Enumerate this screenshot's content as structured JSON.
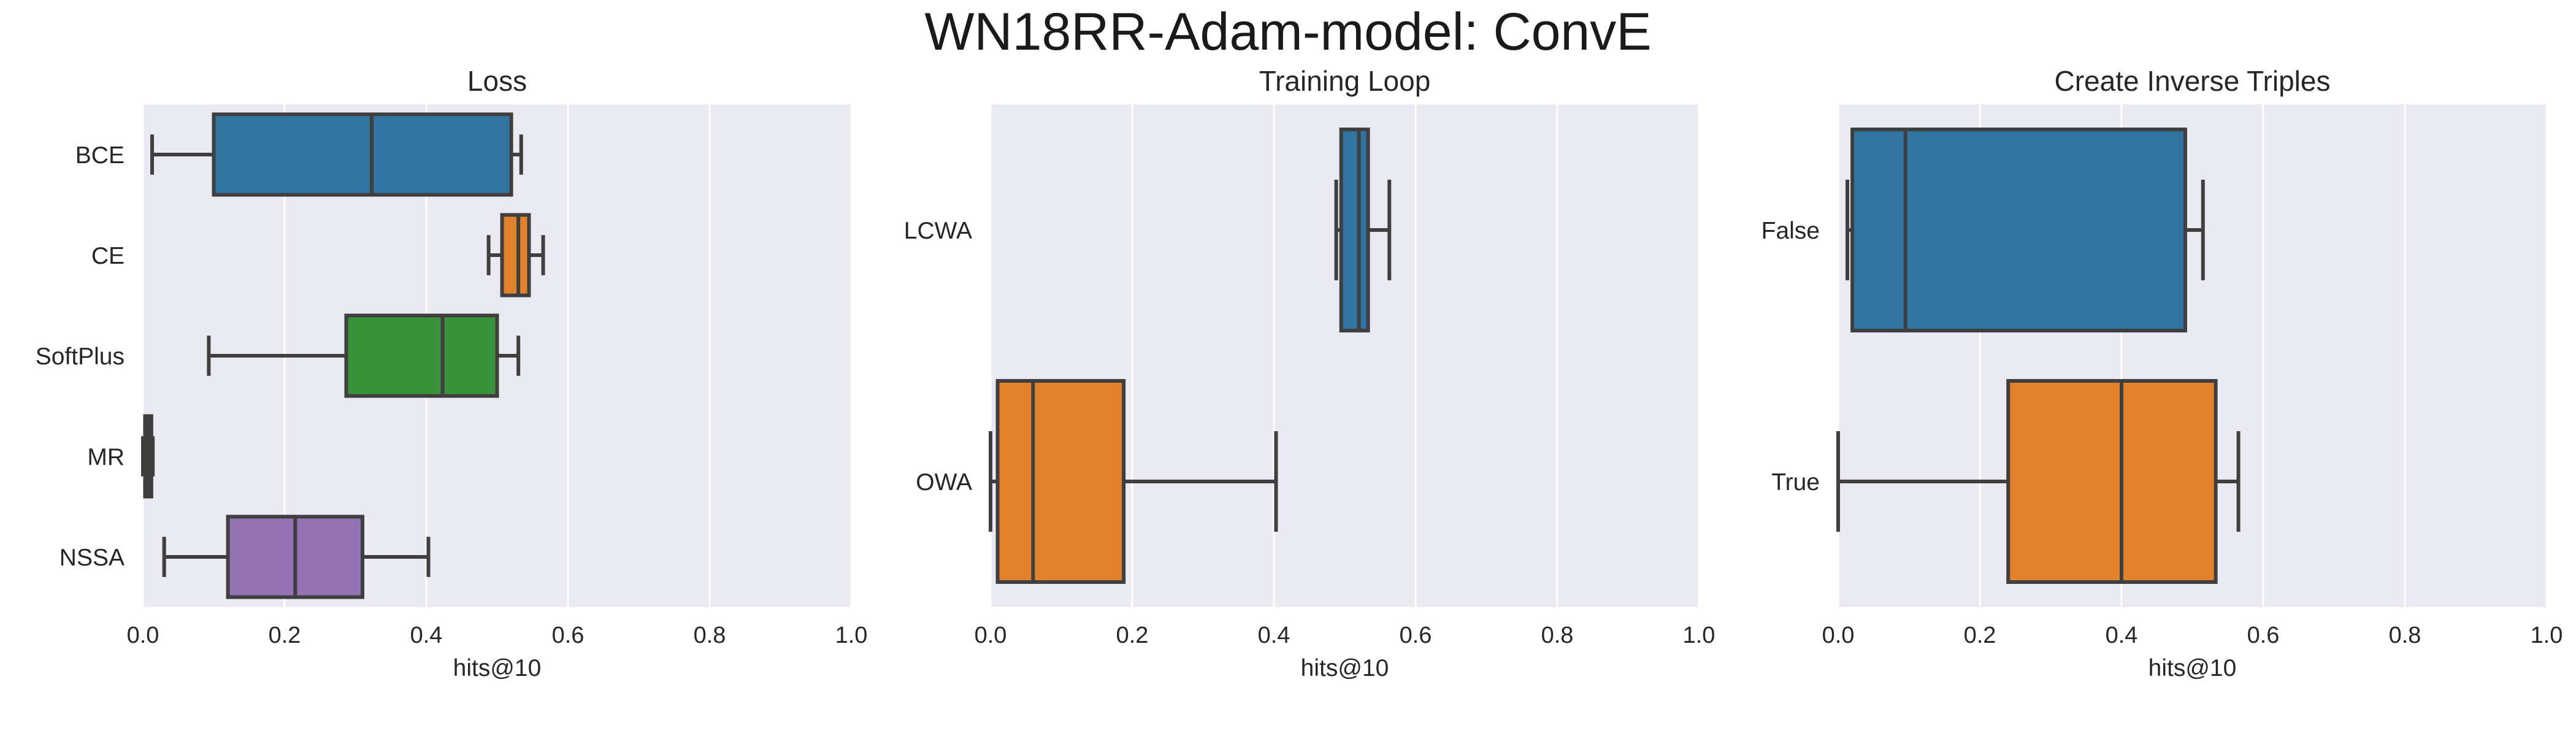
{
  "suptitle": "WN18RR-Adam-model: ConvE",
  "colors": {
    "background": "#eaeaf2",
    "grid": "#ffffff",
    "whisker": "#3f3f3f",
    "blue": "#3274a1",
    "orange": "#e1812c",
    "green": "#3a923a",
    "red": "#c03d3e",
    "purple": "#9372b2"
  },
  "chart_data": [
    {
      "type": "box",
      "orientation": "horizontal",
      "title": "Loss",
      "xlabel": "hits@10",
      "xlim": [
        0,
        1
      ],
      "xticks": [
        "0.0",
        "0.2",
        "0.4",
        "0.6",
        "0.8",
        "1.0"
      ],
      "grid": true,
      "categories": [
        "BCE",
        "CE",
        "SoftPlus",
        "MR",
        "NSSA"
      ],
      "boxes": [
        {
          "label": "BCE",
          "min": 0.013,
          "q1": 0.1,
          "median": 0.323,
          "q3": 0.52,
          "max": 0.534,
          "color": "#3274a1"
        },
        {
          "label": "CE",
          "min": 0.488,
          "q1": 0.507,
          "median": 0.53,
          "q3": 0.545,
          "max": 0.565,
          "color": "#e1812c"
        },
        {
          "label": "SoftPlus",
          "min": 0.093,
          "q1": 0.287,
          "median": 0.423,
          "q3": 0.5,
          "max": 0.53,
          "color": "#3a923a"
        },
        {
          "label": "MR",
          "min": 0.0,
          "q1": 0.003,
          "median": 0.008,
          "q3": 0.012,
          "max": 0.014,
          "color": "#c03d3e"
        },
        {
          "label": "NSSA",
          "min": 0.03,
          "q1": 0.12,
          "median": 0.215,
          "q3": 0.31,
          "max": 0.403,
          "color": "#9372b2"
        }
      ]
    },
    {
      "type": "box",
      "orientation": "horizontal",
      "title": "Training Loop",
      "xlabel": "hits@10",
      "xlim": [
        0,
        1
      ],
      "xticks": [
        "0.0",
        "0.2",
        "0.4",
        "0.6",
        "0.8",
        "1.0"
      ],
      "grid": true,
      "categories": [
        "LCWA",
        "OWA"
      ],
      "boxes": [
        {
          "label": "LCWA",
          "min": 0.488,
          "q1": 0.495,
          "median": 0.52,
          "q3": 0.533,
          "max": 0.563,
          "color": "#3274a1"
        },
        {
          "label": "OWA",
          "min": 0.0,
          "q1": 0.01,
          "median": 0.06,
          "q3": 0.188,
          "max": 0.403,
          "color": "#e1812c"
        }
      ]
    },
    {
      "type": "box",
      "orientation": "horizontal",
      "title": "Create Inverse Triples",
      "xlabel": "hits@10",
      "xlim": [
        0,
        1
      ],
      "xticks": [
        "0.0",
        "0.2",
        "0.4",
        "0.6",
        "0.8",
        "1.0"
      ],
      "grid": true,
      "categories": [
        "False",
        "True"
      ],
      "boxes": [
        {
          "label": "False",
          "min": 0.013,
          "q1": 0.02,
          "median": 0.095,
          "q3": 0.49,
          "max": 0.515,
          "color": "#3274a1"
        },
        {
          "label": "True",
          "min": 0.0,
          "q1": 0.24,
          "median": 0.4,
          "q3": 0.533,
          "max": 0.565,
          "color": "#e1812c"
        }
      ]
    }
  ]
}
